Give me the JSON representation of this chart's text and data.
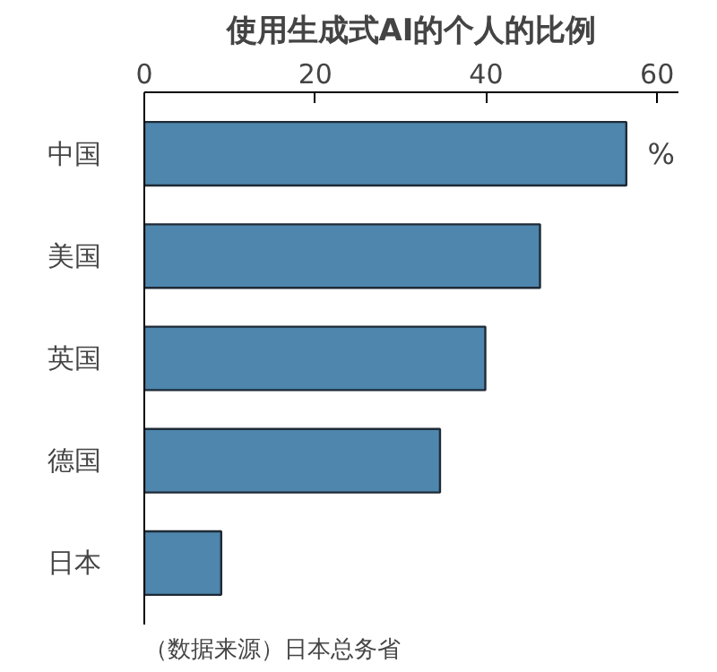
{
  "chart_data": {
    "type": "bar",
    "orientation": "horizontal",
    "title": "使用生成式AI的个人的比例",
    "categories": [
      "中国",
      "美国",
      "英国",
      "德国",
      "日本"
    ],
    "values": [
      56.4,
      46.3,
      39.9,
      34.6,
      9.0
    ],
    "color": "#4e86ad",
    "xlim": [
      0,
      62.5
    ],
    "xticks": [
      0,
      20,
      40,
      60
    ],
    "grid": false,
    "annotations": [
      "%",
      "（数据来源）日本总务省"
    ]
  }
}
